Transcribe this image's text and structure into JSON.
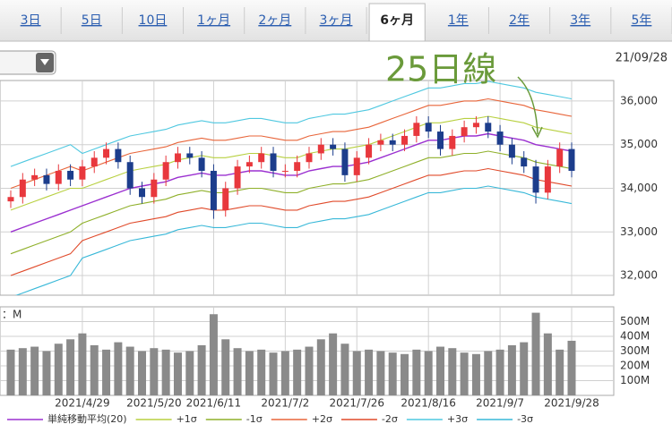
{
  "tabs": {
    "items": [
      "3日",
      "5日",
      "10日",
      "1ヶ月",
      "2ヶ月",
      "3ヶ月",
      "6ヶ月",
      "1年",
      "2年",
      "3年",
      "5年"
    ],
    "selected": 6
  },
  "date": "21/09/28",
  "chart_data": {
    "type": "candlestick",
    "annotation": "25日線",
    "categories": [
      null,
      null,
      null,
      null,
      null,
      null,
      "2021/4/29",
      null,
      null,
      null,
      null,
      null,
      "2021/5/20",
      null,
      null,
      null,
      null,
      "2021/6/11",
      null,
      null,
      null,
      null,
      null,
      "2021/7/2",
      null,
      null,
      null,
      null,
      null,
      "2021/7/26",
      null,
      null,
      null,
      null,
      null,
      "2021/8/16",
      null,
      null,
      null,
      null,
      null,
      "2021/9/7",
      null,
      null,
      null,
      null,
      null,
      "2021/9/28"
    ],
    "open": [
      33700,
      33800,
      34200,
      34300,
      34100,
      34400,
      34200,
      34500,
      34700,
      34900,
      34600,
      34000,
      33800,
      34200,
      34600,
      34800,
      34700,
      34400,
      33500,
      34000,
      34500,
      34600,
      34800,
      34400,
      34400,
      34600,
      34800,
      35000,
      34900,
      34300,
      34700,
      35000,
      35100,
      35000,
      35200,
      35500,
      35300,
      34900,
      35200,
      35400,
      35500,
      35300,
      35000,
      34700,
      34500,
      33900,
      34500,
      34900
    ],
    "high": [
      33950,
      34350,
      34450,
      34450,
      34550,
      34550,
      34650,
      34850,
      35050,
      35050,
      34750,
      34150,
      34350,
      34750,
      34950,
      34950,
      34850,
      34550,
      34150,
      34650,
      34750,
      34950,
      34950,
      34550,
      34750,
      34950,
      35150,
      35150,
      35050,
      34850,
      35150,
      35250,
      35250,
      35350,
      35650,
      35650,
      35450,
      35350,
      35550,
      35650,
      35650,
      35450,
      35150,
      34850,
      34650,
      34650,
      35050,
      35050
    ],
    "low": [
      33550,
      33650,
      34050,
      33950,
      33950,
      34050,
      34050,
      34350,
      34550,
      34450,
      33850,
      33650,
      33650,
      34050,
      34450,
      34550,
      34250,
      33300,
      33350,
      33850,
      34350,
      34450,
      34250,
      34250,
      34250,
      34450,
      34650,
      34750,
      34150,
      34150,
      34550,
      34850,
      34850,
      34850,
      35050,
      35150,
      34750,
      34750,
      35050,
      35250,
      35150,
      34850,
      34550,
      34350,
      33650,
      33750,
      34350,
      34250
    ],
    "close": [
      33800,
      34200,
      34300,
      34100,
      34400,
      34200,
      34500,
      34700,
      34900,
      34600,
      34000,
      33800,
      34200,
      34600,
      34800,
      34700,
      34400,
      33500,
      34000,
      34500,
      34600,
      34800,
      34400,
      34400,
      34600,
      34800,
      35000,
      34900,
      34300,
      34700,
      35000,
      35100,
      35000,
      35200,
      35500,
      35300,
      34900,
      35200,
      35400,
      35500,
      35300,
      35000,
      34700,
      34500,
      33900,
      34500,
      34900,
      34400
    ],
    "up_color": "#e8383d",
    "down_color": "#1c3d8c",
    "series": [
      {
        "name": "単純移動平均(20)",
        "color": "#9b30d0",
        "values": [
          33000,
          33100,
          33200,
          33300,
          33400,
          33500,
          33600,
          33700,
          33800,
          33900,
          34000,
          34050,
          34100,
          34150,
          34250,
          34300,
          34350,
          34300,
          34300,
          34350,
          34400,
          34400,
          34350,
          34300,
          34300,
          34400,
          34450,
          34500,
          34500,
          34550,
          34600,
          34700,
          34800,
          34900,
          35000,
          35100,
          35100,
          35150,
          35200,
          35200,
          35250,
          35200,
          35150,
          35100,
          35000,
          34950,
          34900,
          34850
        ]
      },
      {
        "name": "+1σ",
        "color": "#b8d040",
        "values": [
          33500,
          33600,
          33700,
          33800,
          33900,
          34000,
          34000,
          34100,
          34200,
          34300,
          34400,
          34450,
          34500,
          34550,
          34650,
          34700,
          34750,
          34700,
          34700,
          34750,
          34800,
          34800,
          34750,
          34700,
          34700,
          34800,
          34850,
          34900,
          34900,
          34950,
          35000,
          35100,
          35200,
          35300,
          35400,
          35500,
          35500,
          35550,
          35600,
          35600,
          35650,
          35600,
          35550,
          35500,
          35400,
          35350,
          35300,
          35250
        ]
      },
      {
        "name": "-1σ",
        "color": "#8fb02a",
        "values": [
          32500,
          32600,
          32700,
          32800,
          32900,
          33000,
          33200,
          33300,
          33400,
          33500,
          33600,
          33650,
          33700,
          33750,
          33850,
          33900,
          33950,
          33900,
          33900,
          33950,
          34000,
          34000,
          33950,
          33900,
          33900,
          34000,
          34050,
          34100,
          34100,
          34150,
          34200,
          34300,
          34400,
          34500,
          34600,
          34700,
          34700,
          34750,
          34800,
          34800,
          34850,
          34800,
          34750,
          34700,
          34600,
          34550,
          34500,
          34450
        ]
      },
      {
        "name": "+2σ",
        "color": "#e8653a",
        "values": [
          34000,
          34100,
          34200,
          34300,
          34400,
          34500,
          34400,
          34500,
          34600,
          34700,
          34800,
          34850,
          34900,
          34950,
          35050,
          35100,
          35150,
          35100,
          35100,
          35150,
          35200,
          35200,
          35150,
          35100,
          35100,
          35200,
          35250,
          35300,
          35300,
          35350,
          35400,
          35500,
          35600,
          35700,
          35800,
          35900,
          35900,
          35950,
          36000,
          36000,
          36050,
          36000,
          35950,
          35900,
          35800,
          35750,
          35700,
          35650
        ]
      },
      {
        "name": "-2σ",
        "color": "#e04a2a",
        "values": [
          32000,
          32100,
          32200,
          32300,
          32400,
          32500,
          32800,
          32900,
          33000,
          33100,
          33200,
          33250,
          33300,
          33350,
          33450,
          33500,
          33550,
          33500,
          33500,
          33550,
          33600,
          33600,
          33550,
          33500,
          33500,
          33600,
          33650,
          33700,
          33700,
          33750,
          33800,
          33900,
          34000,
          34100,
          34200,
          34300,
          34300,
          34350,
          34400,
          34400,
          34450,
          34400,
          34350,
          34300,
          34200,
          34150,
          34100,
          34050
        ]
      },
      {
        "name": "+3σ",
        "color": "#4fc8e0",
        "values": [
          34500,
          34600,
          34700,
          34800,
          34900,
          35000,
          34800,
          34900,
          35000,
          35100,
          35200,
          35250,
          35300,
          35350,
          35450,
          35500,
          35550,
          35500,
          35500,
          35550,
          35600,
          35600,
          35550,
          35500,
          35500,
          35600,
          35650,
          35700,
          35700,
          35750,
          35800,
          35900,
          36000,
          36100,
          36200,
          36300,
          36300,
          36350,
          36400,
          36400,
          36450,
          36400,
          36350,
          36300,
          36200,
          36150,
          36100,
          36050
        ]
      },
      {
        "name": "-3σ",
        "color": "#38b8d8",
        "values": [
          31500,
          31600,
          31700,
          31800,
          31900,
          32000,
          32400,
          32500,
          32600,
          32700,
          32800,
          32850,
          32900,
          32950,
          33050,
          33100,
          33150,
          33100,
          33100,
          33150,
          33200,
          33200,
          33150,
          33100,
          33100,
          33200,
          33250,
          33300,
          33300,
          33350,
          33400,
          33500,
          33600,
          33700,
          33800,
          33900,
          33900,
          33950,
          34000,
          34000,
          34050,
          34000,
          33950,
          33900,
          33800,
          33750,
          33700,
          33650
        ]
      }
    ],
    "ylim": [
      31550,
      36470
    ],
    "yticks": [
      {
        "value": 32000,
        "label": "32,000"
      },
      {
        "value": 33000,
        "label": "33,000"
      },
      {
        "value": 34000,
        "label": "34,000"
      },
      {
        "value": 35000,
        "label": "35,000"
      },
      {
        "value": 36000,
        "label": "36,000"
      }
    ],
    "grid": true,
    "volume": {
      "unit_label": "：M",
      "color": "#8a8a8a",
      "values": [
        310,
        320,
        330,
        300,
        350,
        380,
        420,
        340,
        310,
        360,
        330,
        300,
        320,
        310,
        290,
        300,
        340,
        550,
        380,
        320,
        300,
        310,
        290,
        300,
        310,
        330,
        380,
        420,
        350,
        300,
        310,
        300,
        290,
        280,
        310,
        300,
        330,
        320,
        290,
        280,
        300,
        310,
        340,
        360,
        560,
        420,
        310,
        370
      ],
      "ylim": [
        0,
        600
      ],
      "yticks": [
        {
          "value": 100,
          "label": "100M"
        },
        {
          "value": 200,
          "label": "200M"
        },
        {
          "value": 300,
          "label": "300M"
        },
        {
          "value": 400,
          "label": "400M"
        },
        {
          "value": 500,
          "label": "500M"
        }
      ]
    }
  }
}
